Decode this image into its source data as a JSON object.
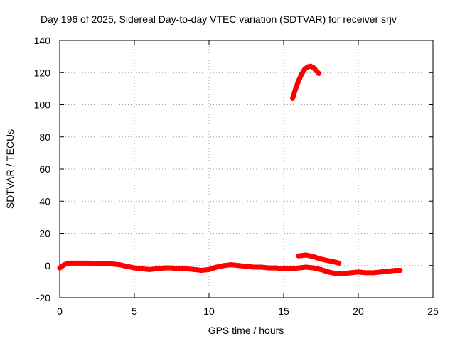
{
  "chart_data": {
    "type": "scatter",
    "title": "Day 196 of 2025, Sidereal Day-to-day VTEC variation (SDTVAR) for receiver srjv",
    "xlabel": "GPS time / hours",
    "ylabel": "SDTVAR / TECUs",
    "xlim": [
      0,
      25
    ],
    "ylim": [
      -20,
      140
    ],
    "xticks": [
      0,
      5,
      10,
      15,
      20,
      25
    ],
    "yticks": [
      -20,
      0,
      20,
      40,
      60,
      80,
      100,
      120,
      140
    ],
    "grid": true,
    "legend": "none",
    "series_color": "#ff0000",
    "series": [
      {
        "name": "baseline",
        "x": [
          0.0,
          0.3,
          0.6,
          1.0,
          1.5,
          2.0,
          2.5,
          3.0,
          3.5,
          4.0,
          4.5,
          5.0,
          5.5,
          6.0,
          6.5,
          7.0,
          7.5,
          8.0,
          8.5,
          9.0,
          9.5,
          10.0,
          10.5,
          11.0,
          11.5,
          12.0,
          12.5,
          13.0,
          13.5,
          14.0,
          14.5,
          15.0,
          15.5,
          16.0,
          16.5,
          17.0,
          17.5,
          18.0,
          18.5,
          19.0,
          19.5,
          20.0,
          20.5,
          21.0,
          21.5,
          22.0,
          22.5,
          22.8
        ],
        "y": [
          -1.5,
          0.5,
          1.5,
          1.5,
          1.5,
          1.5,
          1.2,
          1.0,
          1.0,
          0.5,
          -0.5,
          -1.5,
          -2.0,
          -2.5,
          -2.0,
          -1.5,
          -1.5,
          -2.0,
          -2.0,
          -2.5,
          -3.0,
          -2.5,
          -1.0,
          0.0,
          0.5,
          0.0,
          -0.5,
          -1.0,
          -1.0,
          -1.5,
          -1.5,
          -2.0,
          -2.0,
          -1.5,
          -1.0,
          -1.5,
          -2.5,
          -4.0,
          -5.0,
          -5.0,
          -4.5,
          -4.0,
          -4.5,
          -4.5,
          -4.0,
          -3.5,
          -3.0,
          -3.0
        ]
      },
      {
        "name": "secondary-arc",
        "x": [
          16.0,
          16.5,
          17.0,
          17.5,
          18.0,
          18.5,
          18.7
        ],
        "y": [
          6.0,
          6.5,
          5.5,
          4.0,
          3.0,
          2.0,
          1.5
        ]
      },
      {
        "name": "high-arc",
        "x": [
          15.6,
          15.8,
          16.0,
          16.2,
          16.4,
          16.6,
          16.8,
          17.0,
          17.2,
          17.35
        ],
        "y": [
          104.0,
          110.0,
          115.0,
          119.0,
          122.0,
          123.5,
          124.0,
          123.0,
          121.0,
          119.5
        ]
      }
    ]
  }
}
